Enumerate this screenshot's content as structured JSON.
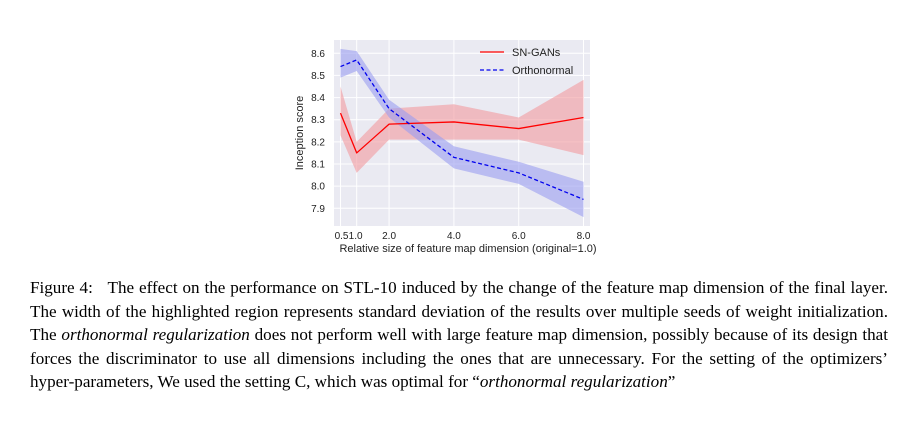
{
  "figure": {
    "caption": {
      "label": "Figure 4:",
      "p1": "The effect on the performance on STL-10 induced by the change of the feature map dimension of the final layer. The width of the highlighted region represents standard deviation of the results over multiple seeds of weight initialization. The ",
      "em1": "orthonormal regularization",
      "p2": " does not perform well with large feature map dimension, possibly because of its design that forces the discriminator to use all dimensions including the ones that are unnecessary.  For the setting of the optimizers’ hyper-parameters, We used the setting C, which was optimal for “",
      "em2": "orthonormal regularization",
      "p3": "”"
    }
  },
  "chart_data": {
    "type": "line",
    "xlabel": "Relative size of feature map dimension (original=1.0)",
    "ylabel": "Inception score",
    "xlim": [
      0.3,
      8.2
    ],
    "ylim": [
      7.82,
      8.66
    ],
    "xticks": [
      0.5,
      1.0,
      2.0,
      4.0,
      6.0,
      8.0
    ],
    "xtick_labels": [
      "0.5",
      "1.0",
      "2.0",
      "4.0",
      "6.0",
      "8.0"
    ],
    "yticks": [
      7.9,
      8.0,
      8.1,
      8.2,
      8.3,
      8.4,
      8.5,
      8.6
    ],
    "ytick_labels": [
      "7.9",
      "8.0",
      "8.1",
      "8.2",
      "8.3",
      "8.4",
      "8.5",
      "8.6"
    ],
    "grid": true,
    "legend_position": "top-right",
    "x": [
      0.5,
      1.0,
      2.0,
      4.0,
      6.0,
      8.0
    ],
    "series": [
      {
        "name": "SN-GANs",
        "color": "#ff0000",
        "band_color": "#f2999f",
        "line_style": "solid",
        "values": [
          8.33,
          8.15,
          8.28,
          8.29,
          8.26,
          8.31
        ],
        "lower": [
          8.23,
          8.06,
          8.21,
          8.21,
          8.21,
          8.14
        ],
        "upper": [
          8.45,
          8.2,
          8.35,
          8.37,
          8.31,
          8.48
        ]
      },
      {
        "name": "Orthonormal",
        "color": "#0000ee",
        "band_color": "#9a9cf0",
        "line_style": "dashed",
        "values": [
          8.54,
          8.57,
          8.35,
          8.13,
          8.06,
          7.94
        ],
        "lower": [
          8.49,
          8.52,
          8.31,
          8.08,
          8.01,
          7.86
        ],
        "upper": [
          8.62,
          8.61,
          8.39,
          8.18,
          8.11,
          8.02
        ]
      }
    ]
  }
}
